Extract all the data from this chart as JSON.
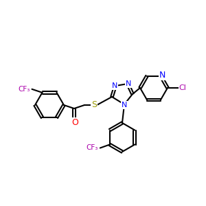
{
  "bg_color": "#ffffff",
  "bond_color": "#000000",
  "bond_width": 1.5,
  "atom_colors": {
    "N": "#0000ff",
    "O": "#ff0000",
    "S": "#999900",
    "Cl": "#aa00aa",
    "F": "#aa00aa",
    "C": "#000000"
  },
  "font_size": 7.5,
  "figsize": [
    3.0,
    3.0
  ],
  "dpi": 100
}
